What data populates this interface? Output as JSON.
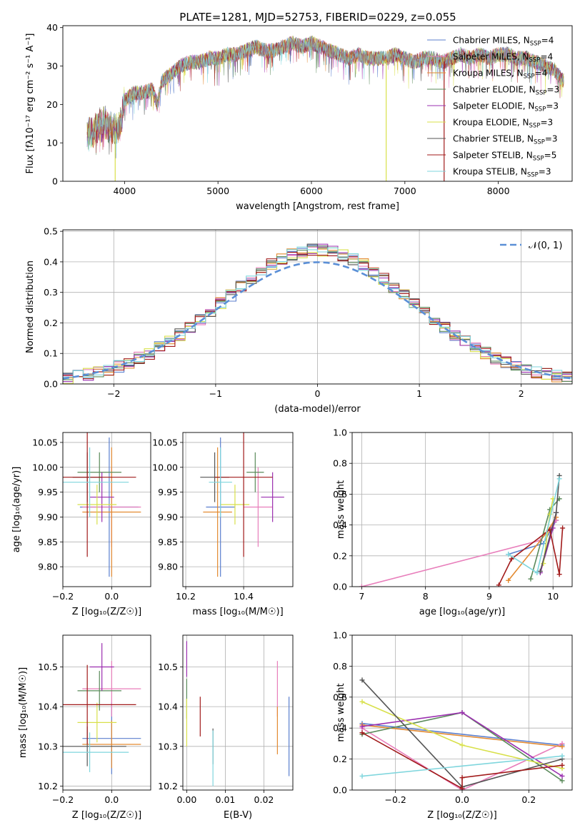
{
  "title": "PLATE=1281, MJD=52753, FIBERID=0229, z=0.055",
  "colors": {
    "series": [
      "#5b7fce",
      "#e87ebb",
      "#e38a31",
      "#5a8a5a",
      "#9b2fb0",
      "#d8e04a",
      "#555555",
      "#a11a1a",
      "#7fd6dd"
    ],
    "gauss": "#5b8fd6",
    "grid": "#b0b0b0"
  },
  "legend_spectra": [
    {
      "name": "Chabrier MILES",
      "n": "4"
    },
    {
      "name": "Salpeter MILES",
      "n": "4"
    },
    {
      "name": "Kroupa MILES",
      "n": "4"
    },
    {
      "name": "Chabrier ELODIE",
      "n": "3"
    },
    {
      "name": "Salpeter ELODIE",
      "n": "3"
    },
    {
      "name": "Kroupa ELODIE",
      "n": "3"
    },
    {
      "name": "Chabrier STELIB",
      "n": "3"
    },
    {
      "name": "Salpeter STELIB",
      "n": "5"
    },
    {
      "name": "Kroupa STELIB",
      "n": "3"
    }
  ],
  "legend_n_label": "N",
  "legend_n_sub": "SSP",
  "gauss_label": "𝒩(0, 1)",
  "chart_data": [
    {
      "id": "spectrum",
      "type": "line",
      "xlabel": "wavelength [Angstrom, rest frame]",
      "ylabel": "Flux [fλ10⁻¹⁷ erg cm⁻² s⁻¹ A⁻¹]",
      "xlim": [
        3340,
        8790
      ],
      "ylim": [
        0,
        40.5
      ],
      "xticks": [
        4000,
        5000,
        6000,
        7000,
        8000
      ],
      "yticks": [
        0,
        10,
        20,
        30,
        40
      ],
      "continuum": {
        "x": [
          3600,
          3700,
          3800,
          3900,
          3950,
          4000,
          4100,
          4200,
          4300,
          4350,
          4400,
          4500,
          4600,
          4700,
          4800,
          4900,
          5000,
          5100,
          5200,
          5300,
          5400,
          5500,
          5600,
          5700,
          5800,
          5900,
          6000,
          6100,
          6200,
          6300,
          6400,
          6500,
          6600,
          6700,
          6800,
          6900,
          7000,
          7100,
          7200,
          7300,
          7400,
          7500,
          7600,
          7700,
          7800,
          7900,
          8000,
          8100,
          8200,
          8300,
          8400,
          8500,
          8600,
          8700
        ],
        "y": [
          12,
          14,
          15,
          13,
          14,
          21,
          23,
          23,
          24,
          20,
          26,
          28,
          30,
          31,
          31,
          32,
          32,
          33,
          33,
          34,
          35,
          34,
          34,
          35,
          36,
          35,
          36,
          35,
          34,
          33,
          32,
          33,
          32,
          32,
          32,
          33,
          32,
          31,
          32,
          32,
          31,
          32,
          33,
          32,
          33,
          32,
          33,
          33,
          32,
          32,
          31,
          30,
          29,
          26
        ]
      },
      "series_names": [
        "Chabrier MILES",
        "Salpeter MILES",
        "Kroupa MILES",
        "Chabrier ELODIE",
        "Salpeter ELODIE",
        "Kroupa ELODIE",
        "Chabrier STELIB",
        "Salpeter STELIB",
        "Kroupa STELIB"
      ],
      "drops": [
        {
          "series": "Kroupa ELODIE",
          "x": 3900
        },
        {
          "series": "Kroupa ELODIE",
          "x": 6800
        },
        {
          "series": "Salpeter STELIB",
          "x": 7420
        }
      ]
    },
    {
      "id": "residuals",
      "type": "area",
      "xlabel": "(data-model)/error",
      "ylabel": "Normed distribution",
      "xlim": [
        -2.5,
        2.5
      ],
      "ylim": [
        0,
        0.505
      ],
      "xticks": [
        -2,
        -1,
        0,
        1,
        2
      ],
      "yticks": [
        0.0,
        0.1,
        0.2,
        0.3,
        0.4,
        0.5
      ],
      "bin_width": 0.1,
      "bin_start": -2.5
    },
    {
      "id": "age_vs_Z",
      "type": "scatter",
      "xlabel": "Z [log₁₀(Z/Z☉)]",
      "ylabel": "age  [log₁₀(age/yr)]",
      "xlim": [
        -0.2,
        0.16
      ],
      "ylim": [
        9.76,
        10.07
      ],
      "xticks": [
        -0.2,
        0.0
      ],
      "yticks": [
        9.8,
        9.85,
        9.9,
        9.95,
        10.0,
        10.05
      ],
      "points": [
        {
          "x": -0.01,
          "y": 9.92,
          "xerr": 0.12,
          "yerr": 0.14
        },
        {
          "x": 0.0,
          "y": 9.92,
          "xerr": 0.12,
          "yerr": 0.08
        },
        {
          "x": 0.0,
          "y": 9.91,
          "xerr": 0.12,
          "yerr": 0.13
        },
        {
          "x": -0.05,
          "y": 9.99,
          "xerr": 0.09,
          "yerr": 0.04
        },
        {
          "x": -0.04,
          "y": 9.94,
          "xerr": 0.05,
          "yerr": 0.05
        },
        {
          "x": -0.06,
          "y": 9.925,
          "xerr": 0.08,
          "yerr": 0.04
        },
        {
          "x": -0.1,
          "y": 9.98,
          "xerr": 0.06,
          "yerr": 0.05
        },
        {
          "x": -0.1,
          "y": 9.98,
          "xerr": 0.2,
          "yerr": 0.16
        },
        {
          "x": -0.09,
          "y": 9.97,
          "xerr": 0.16,
          "yerr": 0.07
        }
      ]
    },
    {
      "id": "age_vs_mass",
      "type": "scatter",
      "xlabel": "mass [log₁₀(M/M☉)]",
      "ylabel": "",
      "xlim": [
        10.19,
        10.57
      ],
      "ylim": [
        9.76,
        10.07
      ],
      "xticks": [
        10.2,
        10.4
      ],
      "yticks": [
        9.8,
        9.85,
        9.9,
        9.95,
        10.0,
        10.05
      ],
      "points": [
        {
          "x": 10.32,
          "y": 9.92,
          "xerr": 0.05,
          "yerr": 0.14
        },
        {
          "x": 10.45,
          "y": 9.92,
          "xerr": 0.05,
          "yerr": 0.08
        },
        {
          "x": 10.31,
          "y": 9.91,
          "xerr": 0.05,
          "yerr": 0.13
        },
        {
          "x": 10.44,
          "y": 9.99,
          "xerr": 0.03,
          "yerr": 0.04
        },
        {
          "x": 10.5,
          "y": 9.94,
          "xerr": 0.04,
          "yerr": 0.05
        },
        {
          "x": 10.37,
          "y": 9.925,
          "xerr": 0.05,
          "yerr": 0.04
        },
        {
          "x": 10.3,
          "y": 9.98,
          "xerr": 0.05,
          "yerr": 0.05
        },
        {
          "x": 10.4,
          "y": 9.98,
          "xerr": 0.1,
          "yerr": 0.16
        },
        {
          "x": 10.32,
          "y": 9.97,
          "xerr": 0.04,
          "yerr": 0.07
        }
      ]
    },
    {
      "id": "weight_vs_age",
      "type": "line",
      "xlabel": "age  [log₁₀(age/yr)]",
      "ylabel": "mass weight",
      "xlim": [
        6.85,
        10.3
      ],
      "ylim": [
        0,
        1.0
      ],
      "xticks": [
        7,
        8,
        9,
        10
      ],
      "yticks": [
        0.0,
        0.2,
        0.4,
        0.6,
        0.8,
        1.0
      ],
      "series": [
        {
          "name": "Chabrier MILES",
          "x": [
            9.3,
            9.85,
            10.05
          ],
          "y": [
            0.21,
            0.28,
            0.43
          ]
        },
        {
          "name": "Salpeter MILES",
          "x": [
            7.0,
            9.8,
            10.05
          ],
          "y": [
            0.0,
            0.3,
            0.43
          ]
        },
        {
          "name": "Kroupa MILES",
          "x": [
            9.3,
            9.9,
            10.05
          ],
          "y": [
            0.04,
            0.35,
            0.45
          ]
        },
        {
          "name": "Chabrier ELODIE",
          "x": [
            9.65,
            9.95,
            10.1
          ],
          "y": [
            0.05,
            0.5,
            0.57
          ]
        },
        {
          "name": "Salpeter ELODIE",
          "x": [
            9.8,
            10.0,
            10.05
          ],
          "y": [
            0.09,
            0.38,
            0.48
          ]
        },
        {
          "name": "Kroupa ELODIE",
          "x": [
            9.85,
            9.95,
            10.0
          ],
          "y": [
            0.15,
            0.47,
            0.57
          ]
        },
        {
          "name": "Chabrier STELIB",
          "x": [
            9.8,
            10.05,
            10.1
          ],
          "y": [
            0.1,
            0.48,
            0.72
          ]
        },
        {
          "name": "Salpeter STELIB",
          "x": [
            9.15,
            9.35,
            9.95,
            10.1,
            10.15
          ],
          "y": [
            0.01,
            0.18,
            0.37,
            0.08,
            0.38
          ]
        },
        {
          "name": "Kroupa STELIB",
          "x": [
            9.3,
            9.75,
            10.1
          ],
          "y": [
            0.21,
            0.09,
            0.7
          ]
        }
      ]
    },
    {
      "id": "mass_vs_Z",
      "type": "scatter",
      "xlabel": "Z [log₁₀(Z/Z☉)]",
      "ylabel": "mass [log₁₀(M/M☉)]",
      "xlim": [
        -0.2,
        0.16
      ],
      "ylim": [
        10.19,
        10.58
      ],
      "xticks": [
        -0.2,
        0.0
      ],
      "yticks": [
        10.2,
        10.3,
        10.4,
        10.5
      ],
      "points": [
        {
          "x": 0.0,
          "y": 10.32,
          "xerr": 0.12,
          "yerr": 0.09
        },
        {
          "x": 0.0,
          "y": 10.445,
          "xerr": 0.12,
          "yerr": 0.07
        },
        {
          "x": 0.0,
          "y": 10.305,
          "xerr": 0.12,
          "yerr": 0.06
        },
        {
          "x": -0.05,
          "y": 10.44,
          "xerr": 0.09,
          "yerr": 0.05
        },
        {
          "x": -0.04,
          "y": 10.5,
          "xerr": 0.05,
          "yerr": 0.06
        },
        {
          "x": -0.06,
          "y": 10.36,
          "xerr": 0.08,
          "yerr": 0.05
        },
        {
          "x": -0.1,
          "y": 10.3,
          "xerr": 0.16,
          "yerr": 0.05
        },
        {
          "x": -0.1,
          "y": 10.405,
          "xerr": 0.2,
          "yerr": 0.1
        },
        {
          "x": -0.09,
          "y": 10.285,
          "xerr": 0.16,
          "yerr": 0.05
        }
      ]
    },
    {
      "id": "mass_vs_EBV",
      "type": "scatter",
      "xlabel": "E(B-V)",
      "ylabel": "",
      "xlim": [
        -0.001,
        0.0275
      ],
      "ylim": [
        10.19,
        10.58
      ],
      "xticks": [
        0.0,
        0.01,
        0.02
      ],
      "yticks": [
        10.2,
        10.3,
        10.4,
        10.5
      ],
      "points": [
        {
          "x": 0.0265,
          "y": 10.325,
          "yerr": 0.1
        },
        {
          "x": 0.0235,
          "y": 10.445,
          "yerr": 0.07
        },
        {
          "x": 0.0235,
          "y": 10.34,
          "yerr": 0.06
        },
        {
          "x": 0.0,
          "y": 10.42,
          "yerr": 0.05
        },
        {
          "x": 0.0,
          "y": 10.52,
          "yerr": 0.045
        },
        {
          "x": 0.0,
          "y": 10.36,
          "yerr": 0.06
        },
        {
          "x": 0.0068,
          "y": 10.3,
          "yerr": 0.045
        },
        {
          "x": 0.0035,
          "y": 10.375,
          "yerr": 0.05
        },
        {
          "x": 0.0068,
          "y": 10.27,
          "yerr": 0.07
        }
      ]
    },
    {
      "id": "weight_vs_Z",
      "type": "line",
      "xlabel": "Z [log₁₀(Z/Z☉)]",
      "ylabel": "mass weight",
      "xlim": [
        -0.33,
        0.33
      ],
      "ylim": [
        0,
        1.0
      ],
      "xticks": [
        -0.2,
        0.0,
        0.2
      ],
      "yticks": [
        0.0,
        0.2,
        0.4,
        0.6,
        0.8,
        1.0
      ],
      "series": [
        {
          "name": "Chabrier MILES",
          "x": [
            -0.3,
            0.3
          ],
          "y": [
            0.43,
            0.29
          ]
        },
        {
          "name": "Salpeter MILES",
          "x": [
            -0.3,
            0.0,
            0.3
          ],
          "y": [
            0.4,
            0.0,
            0.3
          ]
        },
        {
          "name": "Kroupa MILES",
          "x": [
            -0.3,
            0.3
          ],
          "y": [
            0.42,
            0.28
          ]
        },
        {
          "name": "Chabrier ELODIE",
          "x": [
            -0.3,
            0.0,
            0.3
          ],
          "y": [
            0.36,
            0.5,
            0.06
          ]
        },
        {
          "name": "Salpeter ELODIE",
          "x": [
            -0.3,
            0.0,
            0.3
          ],
          "y": [
            0.41,
            0.5,
            0.09
          ]
        },
        {
          "name": "Kroupa ELODIE",
          "x": [
            -0.3,
            0.0,
            0.3
          ],
          "y": [
            0.57,
            0.29,
            0.14
          ]
        },
        {
          "name": "Chabrier STELIB",
          "x": [
            -0.3,
            0.0,
            0.3
          ],
          "y": [
            0.71,
            0.02,
            0.2
          ]
        },
        {
          "name": "Salpeter STELIB",
          "x": [
            -0.3,
            0.0,
            0.0,
            0.3
          ],
          "y": [
            0.37,
            0.01,
            0.08,
            0.16
          ]
        },
        {
          "name": "Kroupa STELIB",
          "x": [
            -0.3,
            0.3
          ],
          "y": [
            0.09,
            0.22
          ]
        }
      ]
    }
  ]
}
